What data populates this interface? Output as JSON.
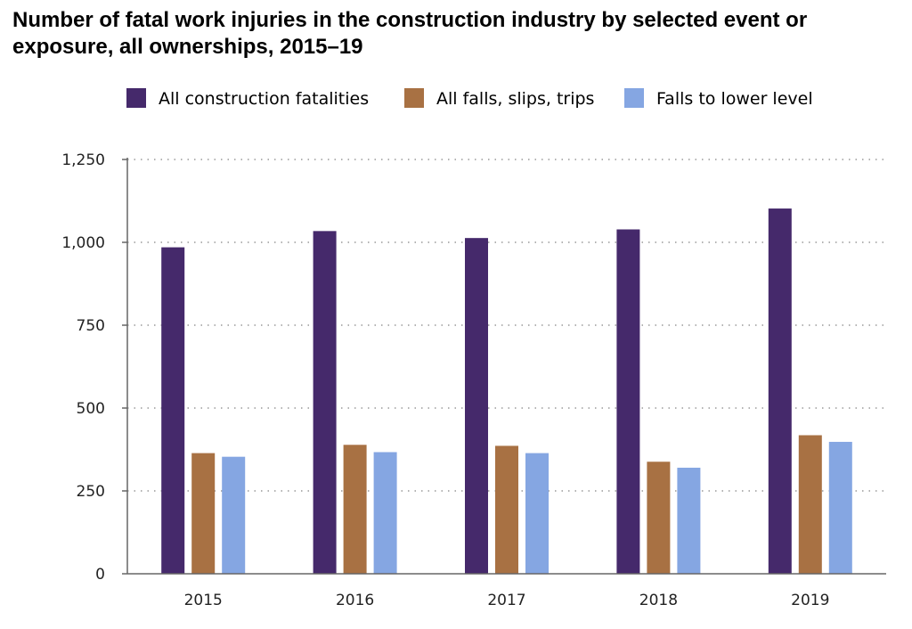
{
  "chart_data": {
    "type": "bar",
    "title": "Number of fatal work injuries in the construction industry by selected event or exposure, all ownerships, 2015–19",
    "xlabel": "",
    "ylabel": "",
    "categories": [
      "2015",
      "2016",
      "2017",
      "2018",
      "2019"
    ],
    "series": [
      {
        "name": "All construction fatalities",
        "color": "#45296b",
        "values": [
          985,
          1034,
          1013,
          1039,
          1102
        ]
      },
      {
        "name": "All falls, slips, trips",
        "color": "#a87143",
        "values": [
          364,
          389,
          386,
          338,
          418
        ]
      },
      {
        "name": "Falls to lower level",
        "color": "#85a6e2",
        "values": [
          353,
          367,
          364,
          320,
          398
        ]
      }
    ],
    "ylim": [
      0,
      1250
    ],
    "yticks": [
      0,
      250,
      500,
      750,
      1000,
      1250
    ],
    "ytick_labels": [
      "0",
      "250",
      "500",
      "750",
      "1,000",
      "1,250"
    ],
    "grid": true,
    "legend_position": "top"
  }
}
